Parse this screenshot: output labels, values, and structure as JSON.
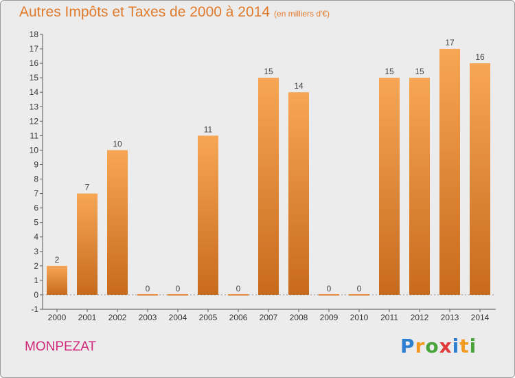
{
  "header": {
    "title": "Autres Impôts et Taxes de 2000 à 2014",
    "subtitle": "(en milliers d'€)"
  },
  "footer": {
    "commune": "MONPEZAT",
    "logo_text": "Proxiti"
  },
  "colors": {
    "title": "#e07a2c",
    "commune": "#d0287a",
    "bar_top": "#f7a656",
    "bar_bottom": "#c86a1c",
    "background": "#ececec",
    "logo_letters": [
      "#2e7fd1",
      "#f29a1f",
      "#4aa43c",
      "#e13a3a",
      "#2e7fd1",
      "#f29a1f",
      "#4aa43c"
    ]
  },
  "chart_data": {
    "type": "bar",
    "categories": [
      "2000",
      "2001",
      "2002",
      "2003",
      "2004",
      "2005",
      "2006",
      "2007",
      "2008",
      "2009",
      "2010",
      "2011",
      "2012",
      "2013",
      "2014"
    ],
    "values": [
      2,
      7,
      10,
      0,
      0,
      11,
      0,
      15,
      14,
      0,
      0,
      15,
      15,
      17,
      16
    ],
    "ylim": [
      -1,
      18
    ],
    "yticks": [
      -1,
      0,
      1,
      2,
      3,
      4,
      5,
      6,
      7,
      8,
      9,
      10,
      11,
      12,
      13,
      14,
      15,
      16,
      17,
      18
    ],
    "grid": false,
    "xlabel": "",
    "ylabel": ""
  }
}
